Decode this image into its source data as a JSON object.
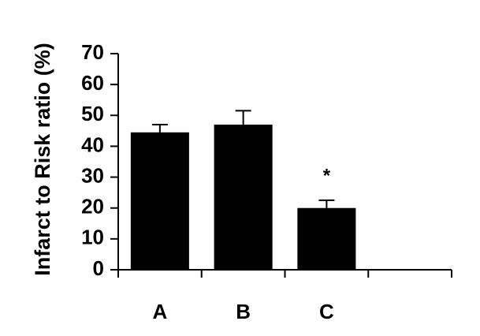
{
  "chart_data": {
    "type": "bar",
    "y_label": "Infarct to Risk ratio (%)",
    "categories": [
      "A",
      "B",
      "C",
      null
    ],
    "values": [
      44.5,
      47,
      20,
      null
    ],
    "errors": [
      2.5,
      4.5,
      2.5,
      null
    ],
    "color": "#000000",
    "ylim": [
      0,
      70
    ],
    "yticks": [
      0,
      10,
      20,
      30,
      40,
      50,
      60,
      70
    ],
    "grid": false,
    "annotations": [
      {
        "text": "*",
        "x": "C"
      }
    ]
  }
}
